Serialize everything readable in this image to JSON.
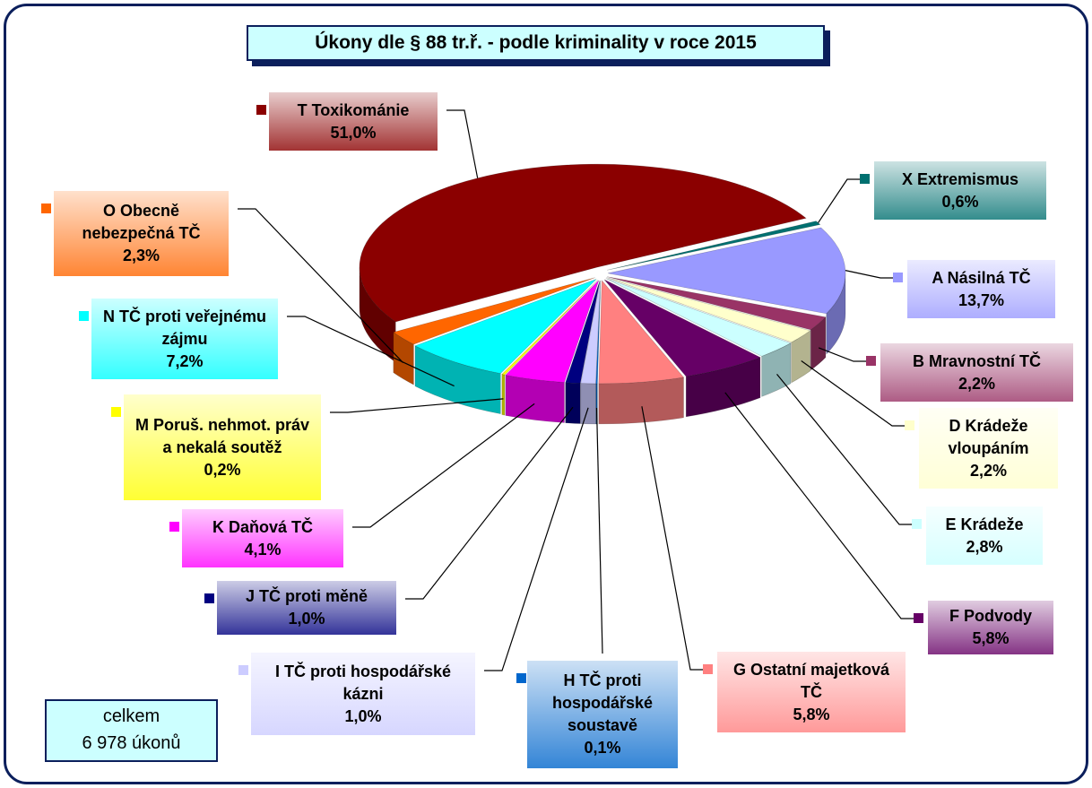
{
  "chart_data": {
    "type": "pie",
    "title": "Úkony dle § 88 tr.ř. - podle kriminality v roce 2015",
    "categories": [
      "T Toxikománie",
      "X Extremismus",
      "A Násilná TČ",
      "B Mravnostní TČ",
      "D Krádeže vloupáním",
      "E Krádeže",
      "F Podvody",
      "G Ostatní majetková TČ",
      "H TČ proti hospodářské soustavě",
      "I TČ proti hospodářské kázni",
      "J TČ proti měně",
      "K Daňová TČ",
      "M Poruš. nehmot. práv a nekalá soutěž",
      "N TČ proti veřejnému zájmu",
      "O Obecně nebezpečná TČ"
    ],
    "values": [
      51.0,
      0.6,
      13.7,
      2.2,
      2.2,
      2.8,
      5.8,
      5.8,
      0.1,
      1.0,
      1.0,
      4.1,
      0.2,
      7.2,
      2.3
    ],
    "value_labels": [
      "51,0%",
      "0,6%",
      "13,7%",
      "2,2%",
      "2,2%",
      "2,8%",
      "5,8%",
      "5,8%",
      "0,1%",
      "1,0%",
      "1,0%",
      "4,1%",
      "0,2%",
      "7,2%",
      "2,3%"
    ],
    "colors": [
      "#8b0000",
      "#007070",
      "#9999ff",
      "#993366",
      "#ffffcc",
      "#ccffff",
      "#660066",
      "#ff8080",
      "#0066cc",
      "#ccccff",
      "#000080",
      "#ff00ff",
      "#ffff00",
      "#00ffff",
      "#ff6600"
    ],
    "annotation": [
      "celkem",
      "6 978 úkonů"
    ]
  }
}
